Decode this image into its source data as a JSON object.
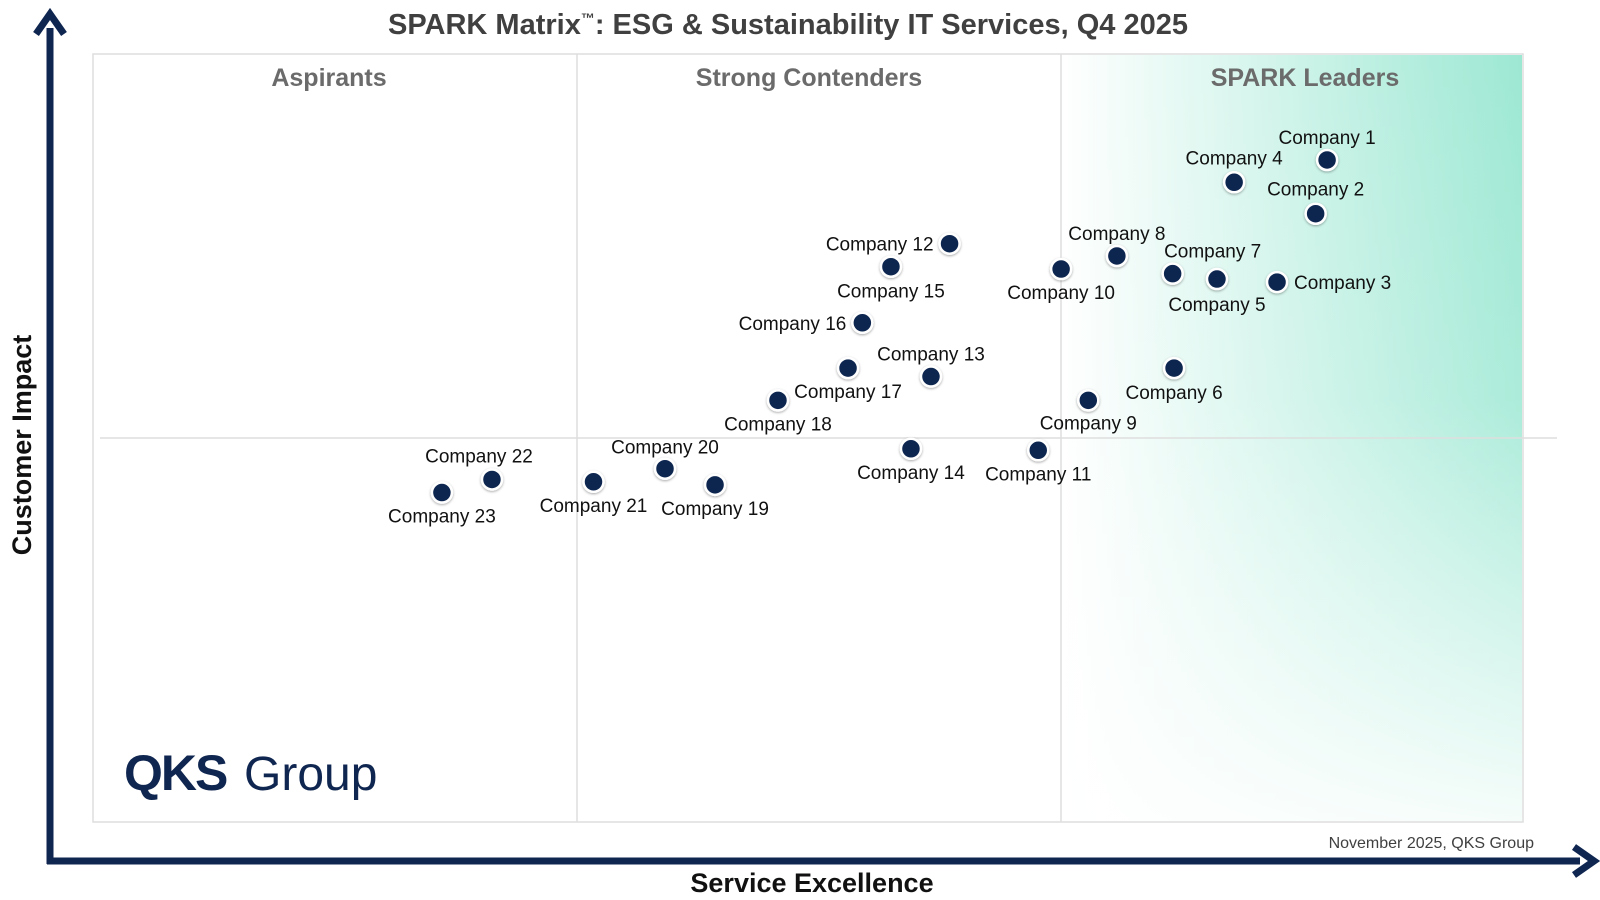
{
  "chart_data": {
    "type": "scatter",
    "title_main": "SPARK Matrix",
    "title_mark": "™",
    "title_rest": ": ESG & Sustainability IT Services, Q4 2025",
    "xlabel": "Service Excellence",
    "ylabel": "Customer Impact",
    "quadrants": [
      "Aspirants",
      "Strong Contenders",
      "SPARK Leaders"
    ],
    "footnote": "November 2025, QKS Group",
    "logo": {
      "primary": "QKS",
      "secondary": "Group"
    },
    "colors": {
      "point": "#0f2650",
      "axis": "#0f2650",
      "leaders_gradient": "#8fe6cf"
    },
    "points": [
      {
        "label": "Company 1",
        "x": 86.3,
        "y": 86.2
      },
      {
        "label": "Company 2",
        "x": 85.5,
        "y": 79.2
      },
      {
        "label": "Company 3",
        "x": 82.8,
        "y": 70.3
      },
      {
        "label": "Company 4",
        "x": 79.8,
        "y": 83.3
      },
      {
        "label": "Company 5",
        "x": 78.6,
        "y": 70.7
      },
      {
        "label": "Company 6",
        "x": 75.6,
        "y": 59.1
      },
      {
        "label": "Company 7",
        "x": 75.5,
        "y": 71.4
      },
      {
        "label": "Company 8",
        "x": 71.6,
        "y": 73.7
      },
      {
        "label": "Company 9",
        "x": 69.6,
        "y": 54.9
      },
      {
        "label": "Company 10",
        "x": 67.7,
        "y": 72.0
      },
      {
        "label": "Company 11",
        "x": 66.1,
        "y": 48.4
      },
      {
        "label": "Company 12",
        "x": 59.9,
        "y": 75.3
      },
      {
        "label": "Company 13",
        "x": 58.6,
        "y": 58.0
      },
      {
        "label": "Company 14",
        "x": 57.2,
        "y": 48.6
      },
      {
        "label": "Company 15",
        "x": 55.8,
        "y": 72.3
      },
      {
        "label": "Company 16",
        "x": 53.8,
        "y": 65.0
      },
      {
        "label": "Company 17",
        "x": 52.8,
        "y": 59.1
      },
      {
        "label": "Company 18",
        "x": 47.9,
        "y": 54.9
      },
      {
        "label": "Company 19",
        "x": 43.5,
        "y": 43.9
      },
      {
        "label": "Company 20",
        "x": 40.0,
        "y": 46.0
      },
      {
        "label": "Company 21",
        "x": 35.0,
        "y": 44.3
      },
      {
        "label": "Company 22",
        "x": 27.9,
        "y": 44.6
      },
      {
        "label": "Company 23",
        "x": 24.4,
        "y": 42.9
      }
    ]
  }
}
